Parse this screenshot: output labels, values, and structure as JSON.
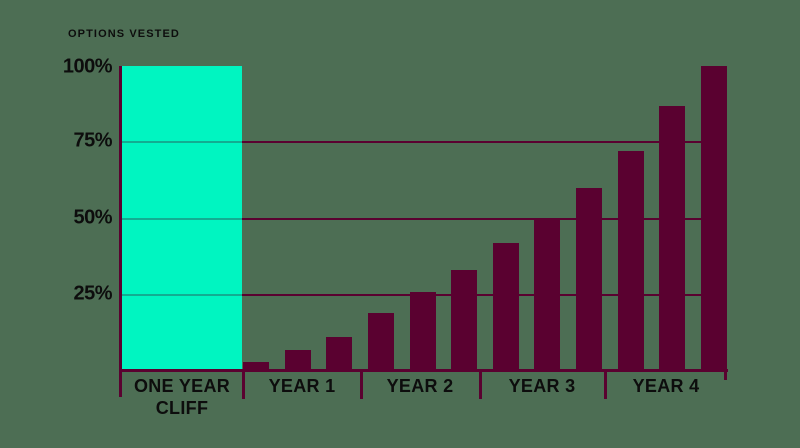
{
  "title": "OPTIONS VESTED",
  "colors": {
    "background": "#4D6E54",
    "bar": "#5A0130",
    "axis": "#5A0130",
    "cliff_band": "#00F5C1",
    "gridline_over_cliff": "#12AD92",
    "text": "#0D0D0D"
  },
  "y_axis": {
    "title": "OPTIONS VESTED",
    "ticks": [
      "100%",
      "75%",
      "50%",
      "25%"
    ]
  },
  "x_axis": {
    "sections": [
      {
        "label": "ONE YEAR CLIFF",
        "line1": "ONE YEAR",
        "line2": "CLIFF"
      },
      {
        "label": "YEAR 1"
      },
      {
        "label": "YEAR 2"
      },
      {
        "label": "YEAR 3"
      },
      {
        "label": "YEAR 4"
      }
    ]
  },
  "chart_data": {
    "type": "bar",
    "title": "OPTIONS VESTED",
    "ylabel": "OPTIONS VESTED",
    "ylim": [
      0,
      100
    ],
    "yticks": [
      25,
      50,
      75,
      100
    ],
    "ytick_labels": [
      "25%",
      "50%",
      "75%",
      "100%"
    ],
    "gridlines": [
      25,
      50,
      75
    ],
    "grid": "horizontal",
    "legend": null,
    "x_sections": [
      "ONE YEAR CLIFF",
      "YEAR 1",
      "YEAR 2",
      "YEAR 3",
      "YEAR 4"
    ],
    "cliff_band": {
      "label": "ONE YEAR CLIFF",
      "height_pct": 100,
      "note": "full-height highlighted band before vesting starts"
    },
    "bars_per_year": 3,
    "categories": [
      "Y1-1",
      "Y1-2",
      "Y1-3",
      "Y2-1",
      "Y2-2",
      "Y2-3",
      "Y3-1",
      "Y3-2",
      "Y3-3",
      "Y4-1",
      "Y4-2",
      "Y4-3"
    ],
    "values": [
      3,
      7,
      11,
      19,
      26,
      33,
      42,
      50,
      60,
      72,
      87,
      100
    ]
  }
}
